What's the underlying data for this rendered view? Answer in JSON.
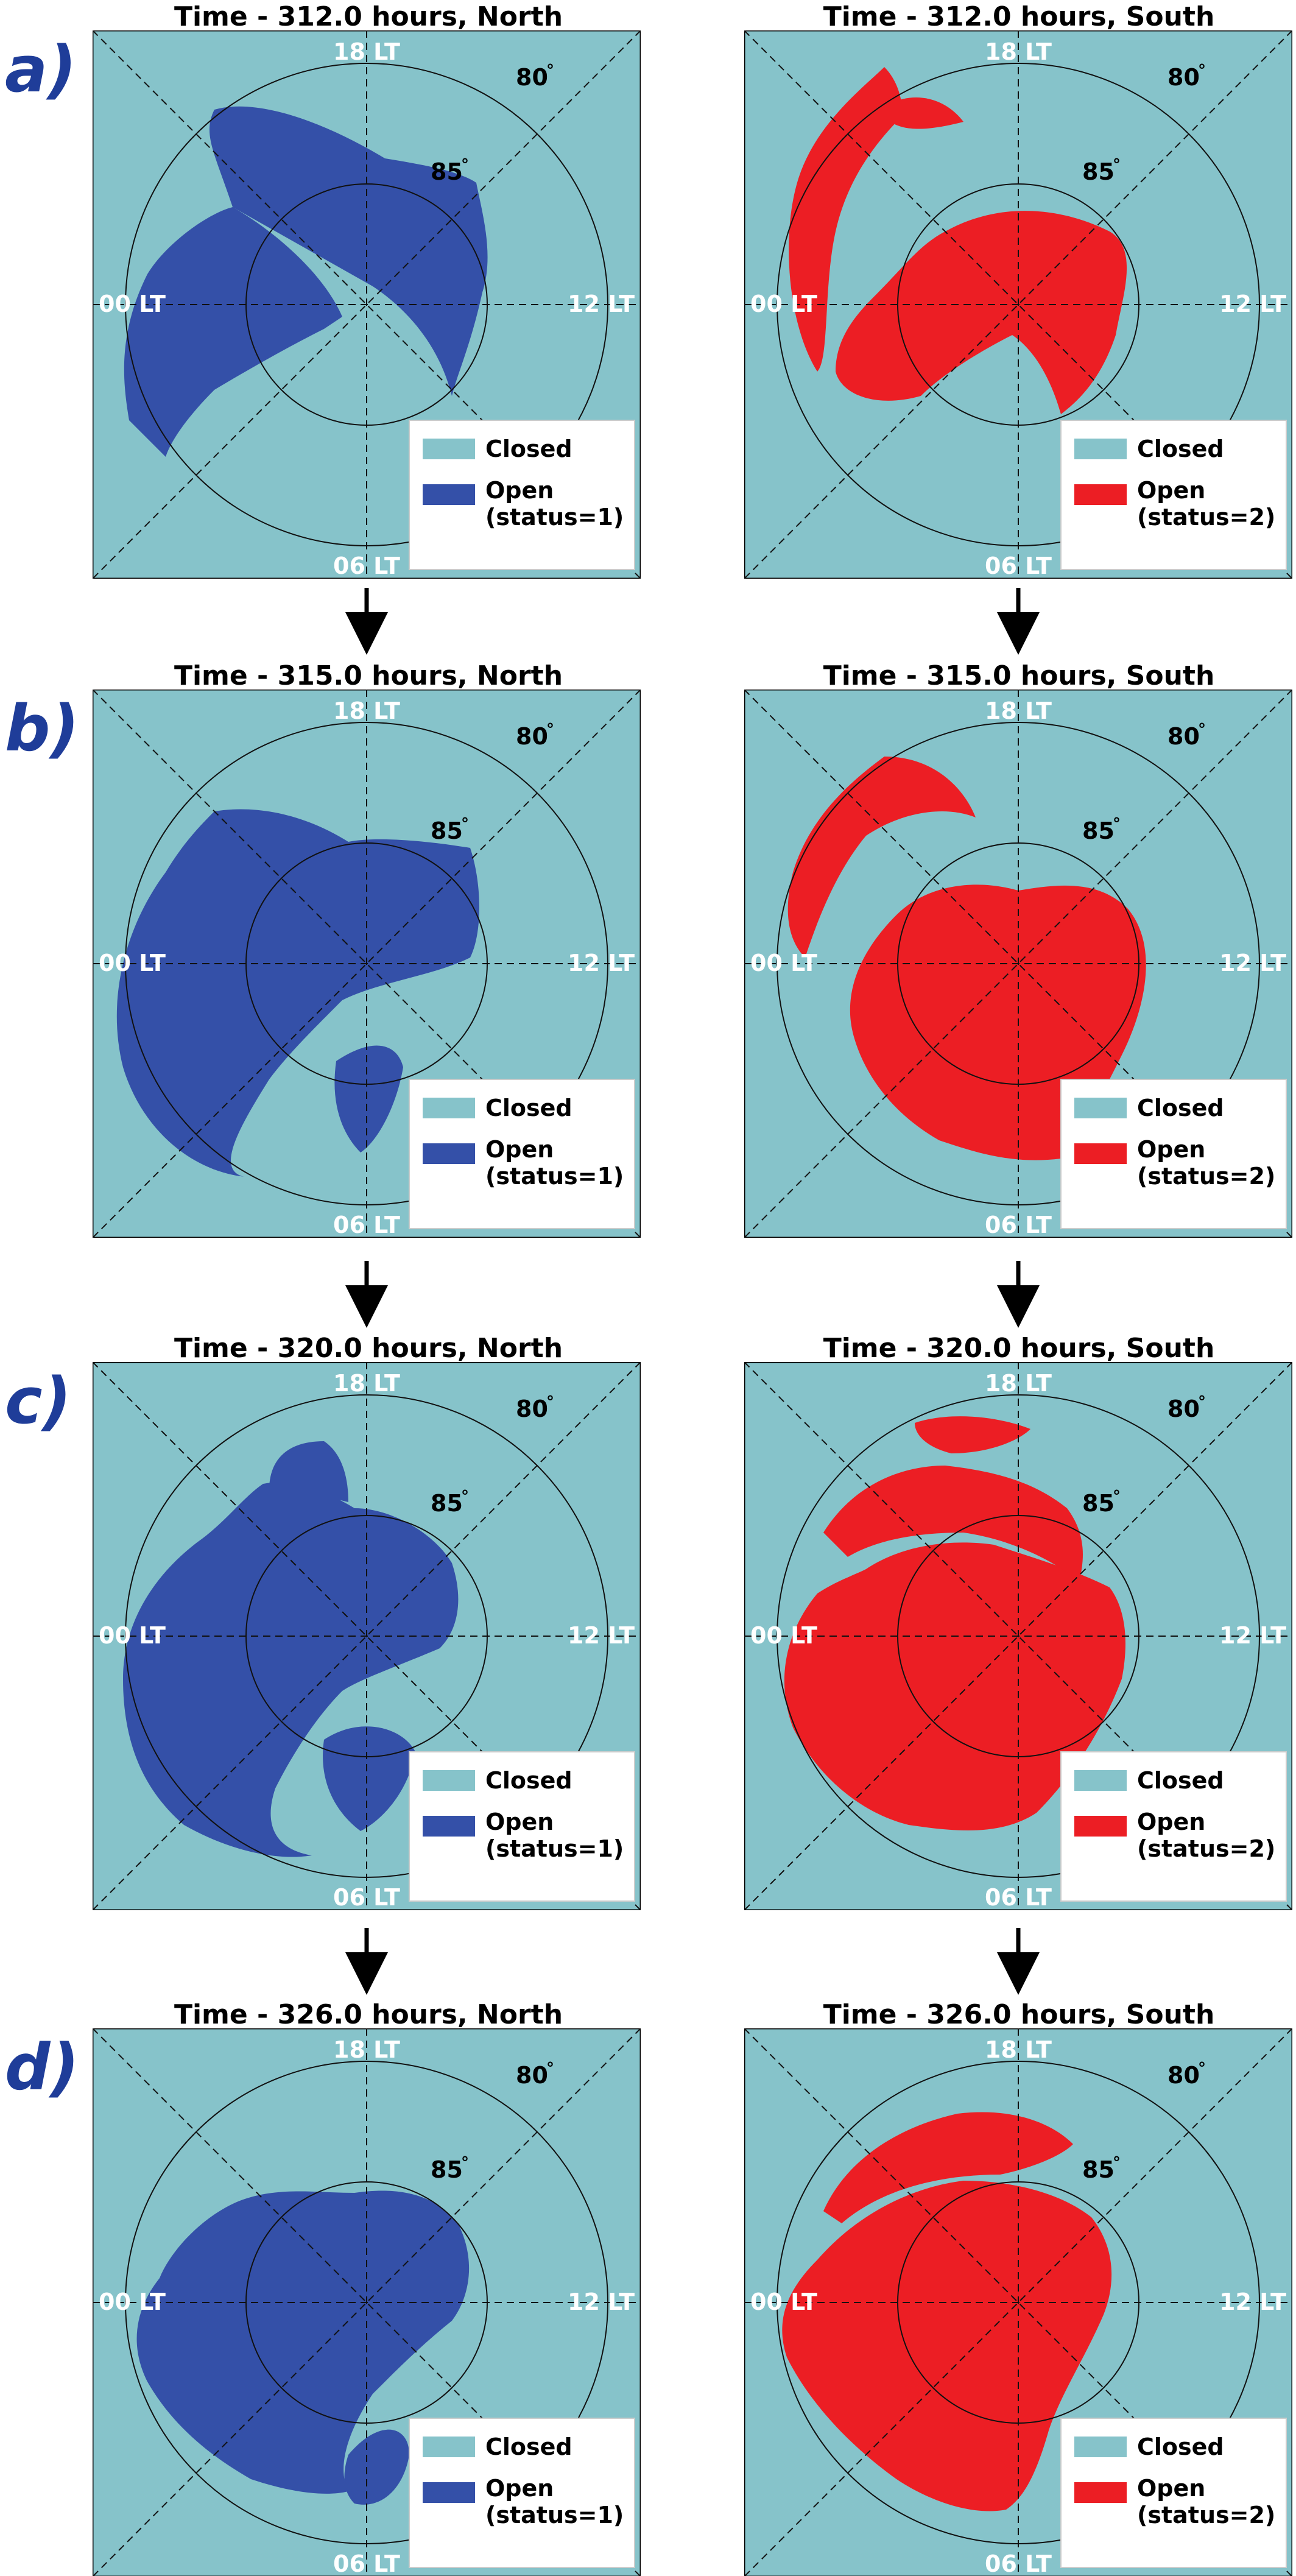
{
  "colors": {
    "closed": "#86c3ca",
    "open_north": "#3450a8",
    "open_south": "#ec1e24",
    "row_label": "#1f3d99"
  },
  "lt_labels": {
    "top": "18 LT",
    "left": "00 LT",
    "right": "12 LT",
    "bottom": "06 LT"
  },
  "lat_labels": {
    "outer": "80",
    "inner": "85",
    "degree": "°"
  },
  "legend": {
    "closed": "Closed",
    "open": "Open",
    "status_north": "(status=1)",
    "status_south": "(status=2)"
  },
  "rows": [
    {
      "label": "a)",
      "north_title": "Time -  312.0 hours, North",
      "south_title": "Time -  312.0 hours, South"
    },
    {
      "label": "b)",
      "north_title": "Time -  315.0 hours, North",
      "south_title": "Time -  315.0 hours, South"
    },
    {
      "label": "c)",
      "north_title": "Time -  320.0 hours, North",
      "south_title": "Time -  320.0 hours, South"
    },
    {
      "label": "d)",
      "north_title": "Time -  326.0 hours, North",
      "south_title": "Time -  326.0 hours, South"
    }
  ]
}
